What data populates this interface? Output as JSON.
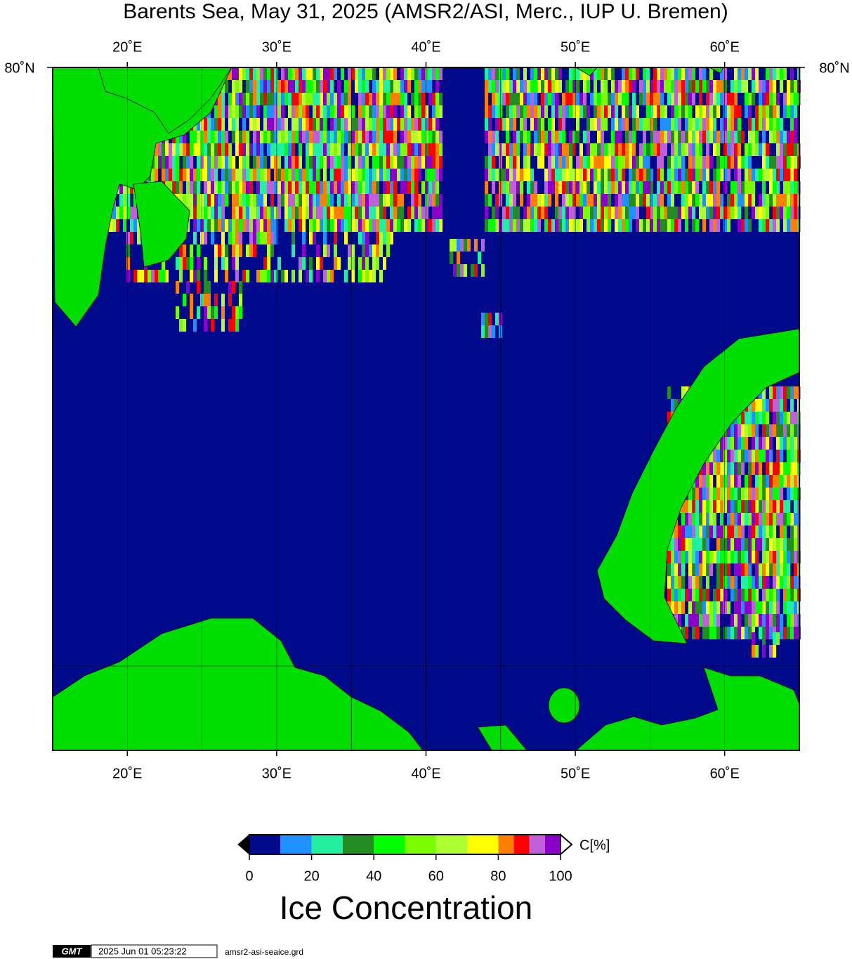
{
  "map": {
    "title": "Barents Sea, May 31, 2025 (AMSR2/ASI, Merc., IUP U. Bremen)",
    "lon_range": [
      15,
      65
    ],
    "lon_ticks": [
      {
        "value": 20,
        "label": "20˚E"
      },
      {
        "value": 30,
        "label": "30˚E"
      },
      {
        "value": 40,
        "label": "40˚E"
      },
      {
        "value": 50,
        "label": "50˚E"
      },
      {
        "value": 60,
        "label": "60˚E"
      }
    ],
    "lat_label": "80˚N",
    "land_color": "#00dd00"
  },
  "colorbar": {
    "bounds": [
      0,
      10,
      20,
      30,
      40,
      50,
      60,
      70,
      80,
      85,
      90,
      95,
      100
    ],
    "colors": [
      "#000a8a",
      "#1e90ff",
      "#20f0a0",
      "#228b22",
      "#00ff00",
      "#7cfc00",
      "#adff2f",
      "#ffff00",
      "#ff8000",
      "#ff0000",
      "#c060d8",
      "#8a00c8"
    ],
    "ticks": [
      0,
      20,
      40,
      60,
      80,
      100
    ],
    "unit_label": "C[%]",
    "title": "Ice Concentration"
  },
  "footer": {
    "logo": "GMT",
    "timestamp": "2025 Jun 01 05:23:22",
    "file": "amsr2-asi-seaice.grd"
  }
}
